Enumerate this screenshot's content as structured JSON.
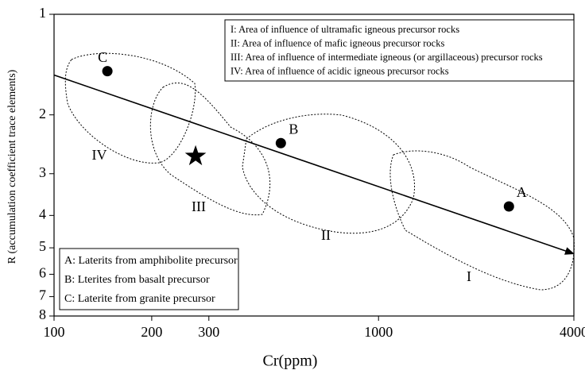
{
  "chart_data": {
    "type": "scatter",
    "xlabel": "Cr(ppm)",
    "ylabel": "R (accumulation coefficient trace elements)",
    "xscale": "log",
    "yscale": "log",
    "yinverted": true,
    "xlim": [
      100,
      4000
    ],
    "ylim": [
      1,
      8
    ],
    "xticks": [
      100,
      200,
      300,
      1000,
      4000
    ],
    "yticks": [
      1,
      2,
      3,
      4,
      5,
      6,
      7,
      8
    ],
    "points": [
      {
        "label": "A",
        "x": 2523,
        "y": 3.76
      },
      {
        "label": "B",
        "x": 500,
        "y": 2.43
      },
      {
        "label": "C",
        "x": 146,
        "y": 1.48
      }
    ],
    "star": {
      "x": 273,
      "y": 2.66
    },
    "arrow": {
      "x": [
        100,
        4000
      ],
      "y": [
        1.52,
        5.21
      ]
    },
    "regions": [
      "I",
      "II",
      "III",
      "IV"
    ],
    "region_legend": [
      "I: Area of influence of ultramafic igneous precursor rocks",
      "II: Area of influence of mafic igneous precursor rocks",
      "III: Area of influence of intermediate igneous (or argillaceous) precursor rocks",
      "IV: Area of influence of acidic igneous precursor rocks"
    ],
    "sample_legend": [
      "A: Laterits from amphibolite precursor",
      "B: Lterites from basalt precursor",
      "C: Laterite from granite precursor"
    ],
    "color": "#000000"
  }
}
